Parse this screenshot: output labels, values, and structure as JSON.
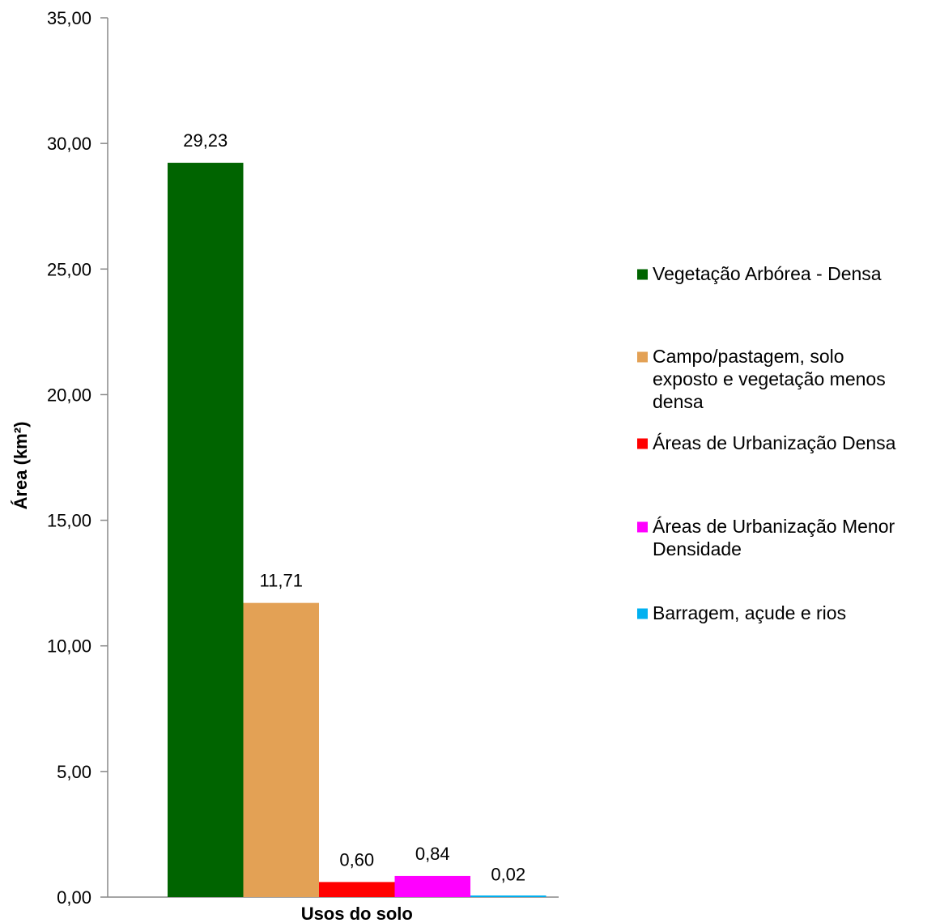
{
  "chart_data": {
    "type": "bar",
    "title": "",
    "xlabel": "Usos do solo",
    "ylabel": "Área (km²)",
    "ylim": [
      0,
      35
    ],
    "y_ticks": [
      "0,00",
      "5,00",
      "10,00",
      "15,00",
      "20,00",
      "25,00",
      "30,00",
      "35,00"
    ],
    "grid": false,
    "legend_position": "right",
    "categories": [
      "Usos do solo"
    ],
    "series": [
      {
        "name": "Vegetação Arbórea - Densa",
        "values": [
          29.23
        ],
        "label": "29,23",
        "color": "#006400"
      },
      {
        "name": "Campo/pastagem, solo exposto e vegetação menos densa",
        "values": [
          11.71
        ],
        "label": "11,71",
        "color": "#E3A155"
      },
      {
        "name": "Áreas de Urbanização Densa",
        "values": [
          0.6
        ],
        "label": "0,60",
        "color": "#FF0000"
      },
      {
        "name": "Áreas de Urbanização Menor Densidade",
        "values": [
          0.84
        ],
        "label": "0,84",
        "color": "#FF00FF"
      },
      {
        "name": "Barragem, açude e rios",
        "values": [
          0.02
        ],
        "label": "0,02",
        "color": "#00B0F0"
      }
    ],
    "legend_lines": [
      [
        "Vegetação Arbórea - Densa"
      ],
      [
        "Campo/pastagem, solo",
        "exposto e vegetação menos",
        "densa"
      ],
      [
        "Áreas de Urbanização Densa"
      ],
      [
        "Áreas de Urbanização Menor",
        "Densidade"
      ],
      [
        "Barragem, açude e rios"
      ]
    ]
  }
}
